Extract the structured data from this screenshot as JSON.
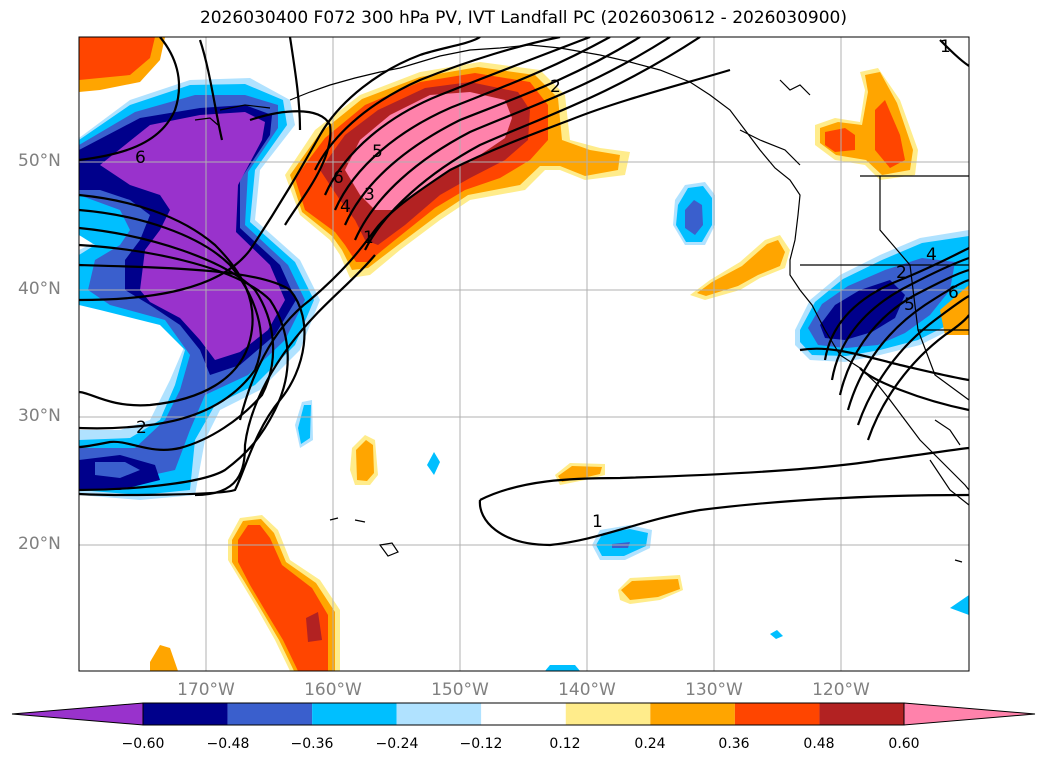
{
  "title": "2026030400 F072 300 hPa PV, IVT Landfall PC (2026030612 - 2026030900)",
  "lat_labels": [
    "50°N",
    "40°N",
    "30°N",
    "20°N"
  ],
  "lon_labels": [
    "170°W",
    "160°W",
    "150°W",
    "140°W",
    "130°W",
    "120°W"
  ],
  "colorbar": {
    "tick_labels": [
      "−0.60",
      "−0.48",
      "−0.36",
      "−0.24",
      "−0.12",
      "0.12",
      "0.24",
      "0.36",
      "0.48",
      "0.60"
    ],
    "colors": [
      "#9932cc",
      "#00008b",
      "#3a5fcd",
      "#00bfff",
      "#b0e2ff",
      "#ffffff",
      "#ffec8b",
      "#ffa500",
      "#ff4500",
      "#b22222",
      "#ff82ab"
    ]
  },
  "contour_labels": [
    "6",
    "5",
    "6",
    "4",
    "3",
    "1",
    "2",
    "2",
    "1",
    "1",
    "2",
    "4",
    "6",
    "5"
  ],
  "map": {
    "projection": "cylindrical",
    "lon_range": [
      -180,
      -110
    ],
    "lat_range": [
      10,
      60
    ],
    "grid": true
  }
}
